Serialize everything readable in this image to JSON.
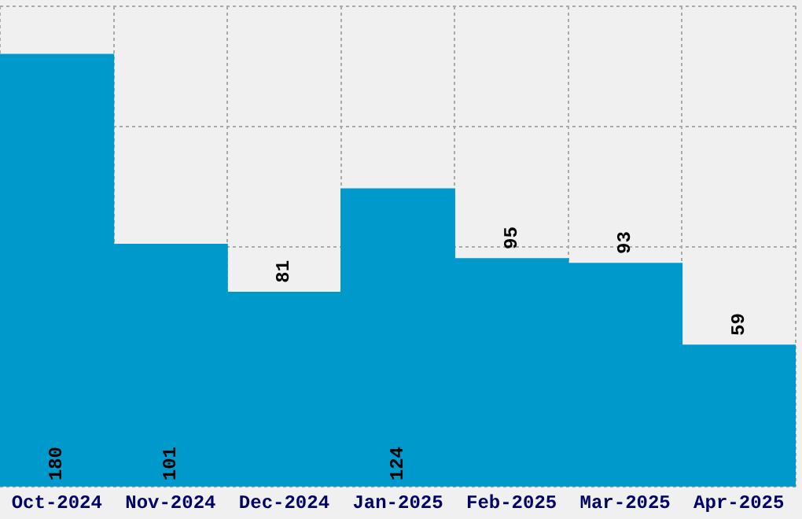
{
  "chart_data": {
    "type": "bar",
    "categories": [
      "Oct-2024",
      "Nov-2024",
      "Dec-2024",
      "Jan-2025",
      "Feb-2025",
      "Mar-2025",
      "Apr-2025"
    ],
    "values": [
      180,
      101,
      81,
      124,
      95,
      93,
      59
    ],
    "color": "#0099cc",
    "ylim": [
      0,
      200
    ],
    "grid": true,
    "tick_labels": "x",
    "data_labels": true
  }
}
